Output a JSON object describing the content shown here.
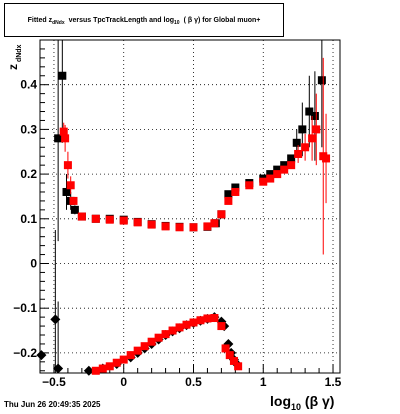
{
  "header": {
    "title_prefix": "Fitted  z",
    "title_z_sub": "dNdx",
    "title_mid": "versus TpcTrackLength and log",
    "title_log_sub": "10",
    "title_suffix": "( β γ) for Global muon+"
  },
  "footer": {
    "timestamp": "Thu Jun 26 20:49:35 2025"
  },
  "colors": {
    "black_series": "#000000",
    "red_series": "#ff0000",
    "grid": "#000000"
  },
  "chart_data": {
    "type": "scatter",
    "title": "Fitted z_dNdx versus TpcTrackLength and log10(β γ) for Global muon+",
    "xlabel_main": "log",
    "xlabel_sub": "10",
    "xlabel_tail": "(β γ)",
    "ylabel_main": "z",
    "ylabel_sub": "dNdx",
    "xlim": [
      -0.6,
      1.55
    ],
    "ylim": [
      -0.245,
      0.5
    ],
    "xticks": [
      -0.5,
      0,
      0.5,
      1,
      1.5
    ],
    "xtick_labels": [
      "−0.5",
      "0",
      "0.5",
      "1",
      "1.5"
    ],
    "yticks": [
      -0.2,
      -0.1,
      0,
      0.1,
      0.2,
      0.3,
      0.4
    ],
    "ytick_labels": [
      "−0.2",
      "−0.1",
      "0",
      "0.1",
      "0.2",
      "0.3",
      "0.4"
    ],
    "grid": true,
    "series": [
      {
        "color": "black",
        "marker": "square",
        "points": [
          {
            "x": -0.47,
            "y": 0.28,
            "err": 0.23
          },
          {
            "x": -0.44,
            "y": 0.42,
            "err": 0.15
          },
          {
            "x": -0.41,
            "y": 0.16,
            "err": 0.04
          },
          {
            "x": -0.38,
            "y": 0.14,
            "err": 0.02
          },
          {
            "x": -0.35,
            "y": 0.12,
            "err": 0.01
          },
          {
            "x": -0.3,
            "y": 0.105
          },
          {
            "x": -0.2,
            "y": 0.1
          },
          {
            "x": -0.1,
            "y": 0.1
          },
          {
            "x": 0.0,
            "y": 0.098
          },
          {
            "x": 0.1,
            "y": 0.093
          },
          {
            "x": 0.2,
            "y": 0.088
          },
          {
            "x": 0.3,
            "y": 0.084
          },
          {
            "x": 0.4,
            "y": 0.082
          },
          {
            "x": 0.5,
            "y": 0.081
          },
          {
            "x": 0.6,
            "y": 0.082
          },
          {
            "x": 0.66,
            "y": 0.09
          },
          {
            "x": 0.7,
            "y": 0.11
          },
          {
            "x": 0.75,
            "y": 0.155
          },
          {
            "x": 0.8,
            "y": 0.17
          },
          {
            "x": 0.9,
            "y": 0.18
          },
          {
            "x": 1.0,
            "y": 0.19
          },
          {
            "x": 1.05,
            "y": 0.2
          },
          {
            "x": 1.1,
            "y": 0.21
          },
          {
            "x": 1.15,
            "y": 0.22
          },
          {
            "x": 1.2,
            "y": 0.235
          },
          {
            "x": 1.24,
            "y": 0.27,
            "err": 0.03
          },
          {
            "x": 1.28,
            "y": 0.3,
            "err": 0.06
          },
          {
            "x": 1.33,
            "y": 0.34,
            "err": 0.08
          },
          {
            "x": 1.37,
            "y": 0.33,
            "err": 0.1
          },
          {
            "x": 1.42,
            "y": 0.41,
            "err": 0.15
          }
        ]
      },
      {
        "color": "black",
        "marker": "diamond",
        "points": [
          {
            "x": -0.59,
            "y": -0.205
          },
          {
            "x": -0.49,
            "y": -0.125,
            "err": 0.2
          },
          {
            "x": -0.47,
            "y": -0.235,
            "err": 0.15
          },
          {
            "x": -0.25,
            "y": -0.24
          },
          {
            "x": -0.15,
            "y": -0.235
          },
          {
            "x": -0.05,
            "y": -0.225
          },
          {
            "x": 0.05,
            "y": -0.21
          },
          {
            "x": 0.1,
            "y": -0.2
          },
          {
            "x": 0.15,
            "y": -0.19
          },
          {
            "x": 0.2,
            "y": -0.18
          },
          {
            "x": 0.25,
            "y": -0.17
          },
          {
            "x": 0.3,
            "y": -0.16
          },
          {
            "x": 0.35,
            "y": -0.152
          },
          {
            "x": 0.4,
            "y": -0.145
          },
          {
            "x": 0.45,
            "y": -0.138
          },
          {
            "x": 0.5,
            "y": -0.133
          },
          {
            "x": 0.55,
            "y": -0.128
          },
          {
            "x": 0.6,
            "y": -0.124
          },
          {
            "x": 0.65,
            "y": -0.12
          },
          {
            "x": 0.7,
            "y": -0.13
          },
          {
            "x": 0.72,
            "y": -0.14
          },
          {
            "x": 0.75,
            "y": -0.18
          },
          {
            "x": 0.77,
            "y": -0.2
          },
          {
            "x": 0.79,
            "y": -0.215
          },
          {
            "x": 0.81,
            "y": -0.225
          }
        ]
      },
      {
        "color": "red",
        "marker": "square",
        "points": [
          {
            "x": -0.43,
            "y": 0.295,
            "err": 0.02
          },
          {
            "x": -0.42,
            "y": 0.28,
            "err": 0.03
          },
          {
            "x": -0.4,
            "y": 0.22,
            "err": 0.03
          },
          {
            "x": -0.38,
            "y": 0.175,
            "err": 0.02
          },
          {
            "x": -0.36,
            "y": 0.14
          },
          {
            "x": -0.3,
            "y": 0.105
          },
          {
            "x": -0.2,
            "y": 0.1
          },
          {
            "x": -0.1,
            "y": 0.098
          },
          {
            "x": 0.0,
            "y": 0.096
          },
          {
            "x": 0.1,
            "y": 0.092
          },
          {
            "x": 0.2,
            "y": 0.087
          },
          {
            "x": 0.3,
            "y": 0.083
          },
          {
            "x": 0.4,
            "y": 0.081
          },
          {
            "x": 0.5,
            "y": 0.081
          },
          {
            "x": 0.6,
            "y": 0.083
          },
          {
            "x": 0.65,
            "y": 0.09
          },
          {
            "x": 0.7,
            "y": 0.11
          },
          {
            "x": 0.75,
            "y": 0.14
          },
          {
            "x": 0.8,
            "y": 0.16
          },
          {
            "x": 0.9,
            "y": 0.175
          },
          {
            "x": 1.0,
            "y": 0.183
          },
          {
            "x": 1.05,
            "y": 0.19
          },
          {
            "x": 1.1,
            "y": 0.2
          },
          {
            "x": 1.15,
            "y": 0.21
          },
          {
            "x": 1.2,
            "y": 0.22
          },
          {
            "x": 1.25,
            "y": 0.245,
            "err": 0.02
          },
          {
            "x": 1.3,
            "y": 0.26,
            "err": 0.03
          },
          {
            "x": 1.35,
            "y": 0.28,
            "err": 0.05
          },
          {
            "x": 1.38,
            "y": 0.3,
            "err": 0.08
          },
          {
            "x": 1.43,
            "y": 0.24,
            "err": 0.22
          },
          {
            "x": 1.45,
            "y": 0.235,
            "err": 0.1
          }
        ]
      },
      {
        "color": "red",
        "marker": "square",
        "points": [
          {
            "x": -0.2,
            "y": -0.24
          },
          {
            "x": -0.15,
            "y": -0.235
          },
          {
            "x": -0.1,
            "y": -0.23
          },
          {
            "x": -0.05,
            "y": -0.222
          },
          {
            "x": 0.0,
            "y": -0.215
          },
          {
            "x": 0.05,
            "y": -0.205
          },
          {
            "x": 0.1,
            "y": -0.195
          },
          {
            "x": 0.15,
            "y": -0.185
          },
          {
            "x": 0.2,
            "y": -0.175
          },
          {
            "x": 0.25,
            "y": -0.166
          },
          {
            "x": 0.3,
            "y": -0.158
          },
          {
            "x": 0.35,
            "y": -0.15
          },
          {
            "x": 0.4,
            "y": -0.143
          },
          {
            "x": 0.45,
            "y": -0.137
          },
          {
            "x": 0.5,
            "y": -0.132
          },
          {
            "x": 0.55,
            "y": -0.127
          },
          {
            "x": 0.6,
            "y": -0.123
          },
          {
            "x": 0.65,
            "y": -0.122
          },
          {
            "x": 0.7,
            "y": -0.14
          },
          {
            "x": 0.73,
            "y": -0.19
          },
          {
            "x": 0.76,
            "y": -0.205
          },
          {
            "x": 0.79,
            "y": -0.218
          },
          {
            "x": 0.82,
            "y": -0.23
          }
        ]
      }
    ]
  }
}
